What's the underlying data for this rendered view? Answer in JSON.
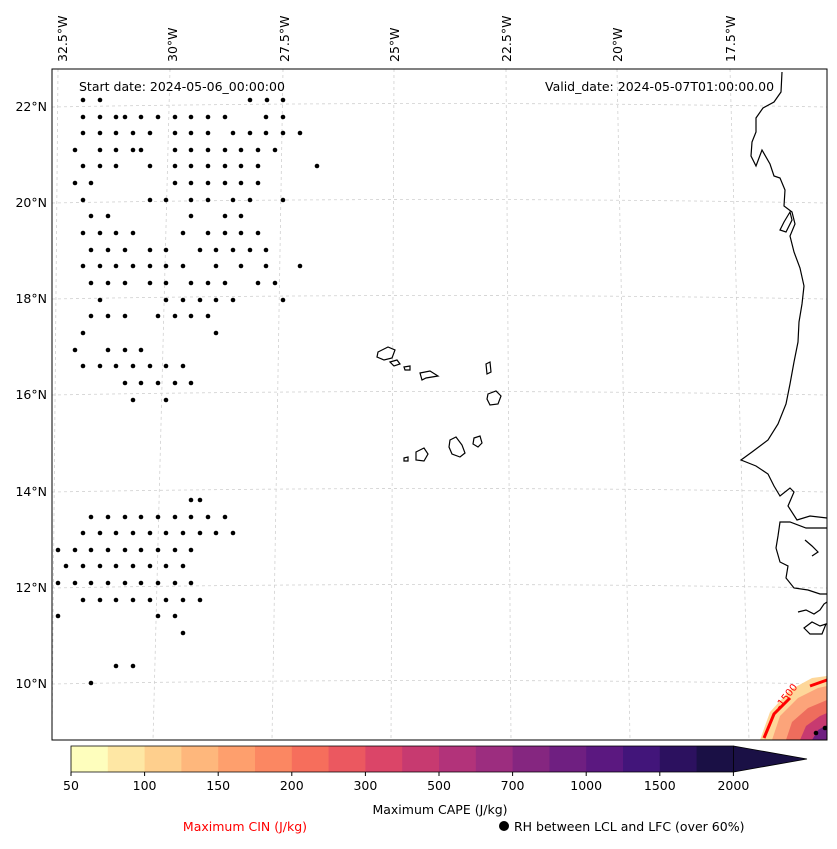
{
  "map": {
    "start_date": "Start date: 2024-05-06_00:00:00",
    "valid_date": "Valid_date: 2024-05-07T01:00:00.00",
    "lon_labels": [
      "32.5°W",
      "30°W",
      "27.5°W",
      "25°W",
      "22.5°W",
      "20°W",
      "17.5°W"
    ],
    "lat_labels": [
      "22°N",
      "20°N",
      "18°N",
      "16°N",
      "14°N",
      "12°N",
      "10°N"
    ],
    "cin_contour_label": "-1500"
  },
  "colorbar": {
    "title": "Maximum CAPE (J/kg)",
    "ticks": [
      "50",
      "100",
      "150",
      "200",
      "300",
      "500",
      "700",
      "1000",
      "1500",
      "2000"
    ],
    "colors": [
      "#fefebd",
      "#fee7a4",
      "#fecf8d",
      "#feb77c",
      "#fe9f6d",
      "#fb8762",
      "#f66e5c",
      "#eb5860",
      "#db4568",
      "#c73a70",
      "#b2337a",
      "#9c2d7f",
      "#852680",
      "#6f1f81",
      "#5b1880",
      "#42157a",
      "#2c115f",
      "#1a1045"
    ]
  },
  "legend": {
    "cin": "Maximum CIN (J/kg)",
    "cin_color": "#ff0000",
    "rh": "RH between LCL and LFC (over 60%)",
    "rh_icon": "filled-circle-icon"
  }
}
